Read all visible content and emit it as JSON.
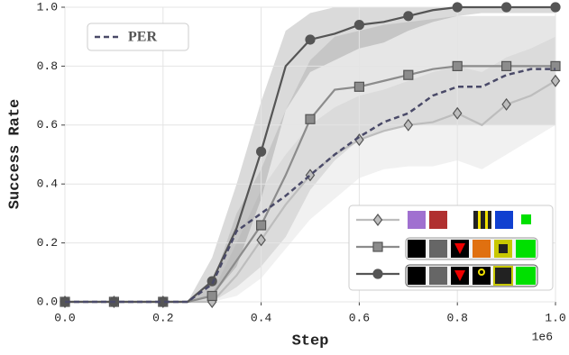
{
  "chart_data": {
    "type": "line",
    "x_label": "Step",
    "y_label": "Success Rate",
    "x_offset_label": "1e6",
    "x": [
      0,
      0.05,
      0.1,
      0.15,
      0.2,
      0.25,
      0.3,
      0.35,
      0.4,
      0.45,
      0.5,
      0.55,
      0.6,
      0.65,
      0.7,
      0.75,
      0.8,
      0.85,
      0.9,
      0.95,
      1.0
    ],
    "markevery": 2,
    "xlim": [
      0,
      1.0
    ],
    "ylim": [
      0,
      1.0
    ],
    "xticks": [
      {
        "value": 0,
        "label": "0.0"
      },
      {
        "value": 0.2,
        "label": "0.2"
      },
      {
        "value": 0.4,
        "label": "0.4"
      },
      {
        "value": 0.6,
        "label": "0.6"
      },
      {
        "value": 0.8,
        "label": "0.8"
      },
      {
        "value": 1.0,
        "label": "1.0"
      }
    ],
    "yticks": [
      {
        "value": 0,
        "label": "0.0"
      },
      {
        "value": 0.2,
        "label": "0.2"
      },
      {
        "value": 0.4,
        "label": "0.4"
      },
      {
        "value": 0.6,
        "label": "0.6"
      },
      {
        "value": 0.8,
        "label": "0.8"
      },
      {
        "value": 1.0,
        "label": "1.0"
      }
    ],
    "grid": true,
    "series": [
      {
        "color": "#bdbdbd",
        "marker": "diamond",
        "values": [
          0,
          0,
          0,
          0,
          0,
          0,
          0,
          0.09,
          0.21,
          0.33,
          0.43,
          0.5,
          0.55,
          0.58,
          0.6,
          0.61,
          0.64,
          0.6,
          0.67,
          0.7,
          0.75
        ],
        "lower": [
          0,
          0,
          0,
          0,
          0,
          0,
          0,
          0.02,
          0.08,
          0.18,
          0.28,
          0.35,
          0.42,
          0.45,
          0.46,
          0.46,
          0.48,
          0.45,
          0.5,
          0.55,
          0.6
        ],
        "upper": [
          0,
          0,
          0,
          0,
          0,
          0,
          0.03,
          0.2,
          0.38,
          0.5,
          0.6,
          0.66,
          0.7,
          0.72,
          0.75,
          0.78,
          0.8,
          0.78,
          0.83,
          0.86,
          0.9
        ]
      },
      {
        "color": "#8c8c8c",
        "marker": "square",
        "values": [
          0,
          0,
          0,
          0,
          0,
          0,
          0.02,
          0.14,
          0.26,
          0.43,
          0.62,
          0.72,
          0.73,
          0.75,
          0.77,
          0.79,
          0.8,
          0.8,
          0.8,
          0.8,
          0.8
        ],
        "lower": [
          0,
          0,
          0,
          0,
          0,
          0,
          0,
          0.05,
          0.12,
          0.22,
          0.38,
          0.48,
          0.55,
          0.58,
          0.6,
          0.6,
          0.6,
          0.6,
          0.6,
          0.6,
          0.6
        ],
        "upper": [
          0,
          0,
          0,
          0,
          0,
          0,
          0.06,
          0.3,
          0.45,
          0.65,
          0.82,
          0.9,
          0.92,
          0.94,
          0.95,
          0.96,
          0.97,
          0.97,
          0.97,
          0.97,
          0.97
        ]
      },
      {
        "color": "#555555",
        "marker": "circle",
        "values": [
          0,
          0,
          0,
          0,
          0,
          0,
          0.07,
          0.25,
          0.51,
          0.8,
          0.89,
          0.91,
          0.94,
          0.95,
          0.97,
          0.99,
          1.0,
          1.0,
          1.0,
          1.0,
          1.0
        ],
        "lower": [
          0,
          0,
          0,
          0,
          0,
          0,
          0.02,
          0.12,
          0.35,
          0.65,
          0.78,
          0.82,
          0.86,
          0.88,
          0.92,
          0.95,
          0.97,
          0.98,
          0.98,
          0.98,
          0.98
        ],
        "upper": [
          0,
          0,
          0,
          0,
          0,
          0,
          0.15,
          0.4,
          0.68,
          0.92,
          0.98,
          1.0,
          1.0,
          1.0,
          1.0,
          1.0,
          1.0,
          1.0,
          1.0,
          1.0,
          1.0
        ]
      },
      {
        "name": "PER",
        "color": "#4a4a68",
        "dashed": true,
        "values": [
          0,
          0,
          0,
          0,
          0,
          0,
          0.06,
          0.24,
          0.3,
          0.36,
          0.43,
          0.5,
          0.56,
          0.61,
          0.64,
          0.7,
          0.73,
          0.73,
          0.77,
          0.79,
          0.79
        ]
      }
    ]
  }
}
